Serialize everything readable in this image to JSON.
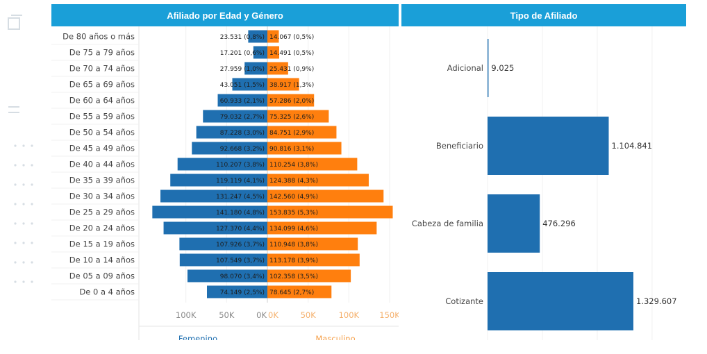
{
  "chart_data": [
    {
      "type": "bar",
      "orientation": "horizontal",
      "layout": "population-pyramid",
      "title": "Afiliado por Edad y Género",
      "header_color": "#1a9fd8",
      "categories": [
        "De 80 años o más",
        "De 75 a 79 años",
        "De 70 a 74 años",
        "De 65 a 69 años",
        "De 60 a 64 años",
        "De 55 a 59 años",
        "De 50 a 54 años",
        "De 45 a 49 años",
        "De 40 a 44 años",
        "De 35 a 39 años",
        "De 30 a 34 años",
        "De 25 a 29 años",
        "De 20 a 24 años",
        "De 15 a 19 años",
        "De 10 a 14 años",
        "De 05 a 09 años",
        "De 0 a 4 años"
      ],
      "series": [
        {
          "name": "Femenino",
          "color": "#1f6fb0",
          "values": [
            23531,
            17201,
            27959,
            43051,
            60933,
            79032,
            87228,
            92668,
            110207,
            119119,
            131247,
            141180,
            127370,
            107926,
            107549,
            98070,
            74149
          ],
          "labels": [
            "23.531 (0,8%)",
            "17.201 (0,6%)",
            "27.959 (1,0%)",
            "43.051 (1,5%)",
            "60.933 (2,1%)",
            "79.032 (2,7%)",
            "87.228 (3,0%)",
            "92.668 (3,2%)",
            "110.207 (3,8%)",
            "119.119 (4,1%)",
            "131.247 (4,5%)",
            "141.180 (4,8%)",
            "127.370 (4,4%)",
            "107.926 (3,7%)",
            "107.549 (3,7%)",
            "98.070 (3,4%)",
            "74.149 (2,5%)"
          ]
        },
        {
          "name": "Masculino",
          "color": "#ff7f0e",
          "values": [
            14067,
            14491,
            25431,
            38917,
            57286,
            75325,
            84751,
            90816,
            110254,
            124388,
            142560,
            153835,
            134099,
            110948,
            113178,
            102358,
            78645
          ],
          "labels": [
            "14.067 (0,5%)",
            "14.491 (0,5%)",
            "25.431 (0,9%)",
            "38.917 (1,3%)",
            "57.286 (2,0%)",
            "75.325 (2,6%)",
            "84.751 (2,9%)",
            "90.816 (3,1%)",
            "110.254 (3,8%)",
            "124.388 (4,3%)",
            "142.560 (4,9%)",
            "153.835 (5,3%)",
            "134.099 (4,6%)",
            "110.948 (3,8%)",
            "113.178 (3,9%)",
            "102.358 (3,5%)",
            "78.645 (2,7%)"
          ]
        }
      ],
      "left_axis": {
        "ticks": [
          100000,
          50000,
          0
        ],
        "tick_labels": [
          "100K",
          "50K",
          "0K"
        ],
        "label": "Femenino",
        "label_color": "#1f6fb0"
      },
      "right_axis": {
        "ticks": [
          0,
          50000,
          100000,
          150000
        ],
        "tick_labels": [
          "0K",
          "50K",
          "100K",
          "150K"
        ],
        "label": "Masculino",
        "label_color": "#f5a04a"
      },
      "xlim": [
        0,
        150000
      ],
      "grid": true
    },
    {
      "type": "bar",
      "orientation": "horizontal",
      "title": "Tipo de Afiliado",
      "header_color": "#1a9fd8",
      "color": "#1f6fb0",
      "categories": [
        "Adicional",
        "Beneficiario",
        "Cabeza de familia",
        "Cotizante"
      ],
      "values": [
        9025,
        1104841,
        476296,
        1329607
      ],
      "value_labels": [
        "9.025",
        "1.104.841",
        "476.296",
        "1.329.607"
      ],
      "xlim": [
        0,
        2000000
      ],
      "grid": true
    }
  ]
}
